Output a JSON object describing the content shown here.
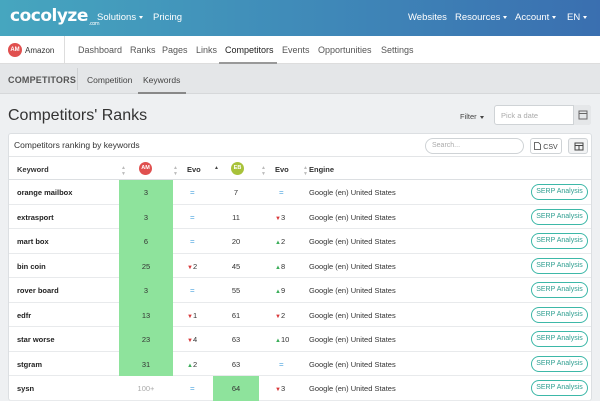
{
  "app": {
    "logo": "cocolyze",
    "logo_sub": ".com"
  },
  "topnav": {
    "solutions": "Solutions",
    "pricing": "Pricing",
    "websites": "Websites",
    "resources": "Resources",
    "account": "Account",
    "language": "EN"
  },
  "site": {
    "avatar": "AM",
    "name": "Amazon"
  },
  "sitetabs": [
    "Dashboard",
    "Ranks",
    "Pages",
    "Links",
    "Competitors",
    "Events",
    "Opportunities",
    "Settings"
  ],
  "subnav": {
    "section": "COMPETITORS",
    "tabs": [
      "Competition",
      "Keywords"
    ]
  },
  "page": {
    "title": "Competitors' Ranks",
    "filter_label": "Filter",
    "date_placeholder": "Pick a date"
  },
  "card": {
    "title": "Competitors ranking by keywords",
    "search_placeholder": "Search...",
    "csv_label": "CSV"
  },
  "table": {
    "headers": {
      "keyword": "Keyword",
      "am_badge": "AM",
      "evo1": "Evo",
      "eb_badge": "EB",
      "evo2": "Evo",
      "engine": "Engine"
    },
    "action_label": "SERP Analysis",
    "rows": [
      {
        "keyword": "orange mailbox",
        "am": "3",
        "evo1": "=",
        "evo1_dir": "eq",
        "eb": "7",
        "evo2": "=",
        "evo2_dir": "eq",
        "engine": "Google (en) United States"
      },
      {
        "keyword": "extrasport",
        "am": "3",
        "evo1": "=",
        "evo1_dir": "eq",
        "eb": "11",
        "evo2": "3",
        "evo2_dir": "down",
        "engine": "Google (en) United States"
      },
      {
        "keyword": "mart box",
        "am": "6",
        "evo1": "=",
        "evo1_dir": "eq",
        "eb": "20",
        "evo2": "2",
        "evo2_dir": "up",
        "engine": "Google (en) United States"
      },
      {
        "keyword": "bin coin",
        "am": "25",
        "evo1": "2",
        "evo1_dir": "down",
        "eb": "45",
        "evo2": "8",
        "evo2_dir": "up",
        "engine": "Google (en) United States"
      },
      {
        "keyword": "rover board",
        "am": "3",
        "evo1": "=",
        "evo1_dir": "eq",
        "eb": "55",
        "evo2": "9",
        "evo2_dir": "up",
        "engine": "Google (en) United States"
      },
      {
        "keyword": "edfr",
        "am": "13",
        "evo1": "1",
        "evo1_dir": "down",
        "eb": "61",
        "evo2": "2",
        "evo2_dir": "down",
        "engine": "Google (en) United States"
      },
      {
        "keyword": "star worse",
        "am": "23",
        "evo1": "4",
        "evo1_dir": "down",
        "eb": "63",
        "evo2": "10",
        "evo2_dir": "up",
        "engine": "Google (en) United States"
      },
      {
        "keyword": "stgram",
        "am": "31",
        "evo1": "2",
        "evo1_dir": "up",
        "eb": "63",
        "evo2": "=",
        "evo2_dir": "eq",
        "engine": "Google (en) United States"
      },
      {
        "keyword": "sysn",
        "am": "100+",
        "evo1": "=",
        "evo1_dir": "eq",
        "eb": "64",
        "evo2": "3",
        "evo2_dir": "down",
        "engine": "Google (en) United States"
      }
    ]
  },
  "colors": {
    "highlight": "#8ee39c",
    "am_badge": "#e0504f",
    "eb_badge": "#a8c23a",
    "up": "#3cae5a",
    "down": "#d9383a",
    "equal": "#4aa3df"
  }
}
